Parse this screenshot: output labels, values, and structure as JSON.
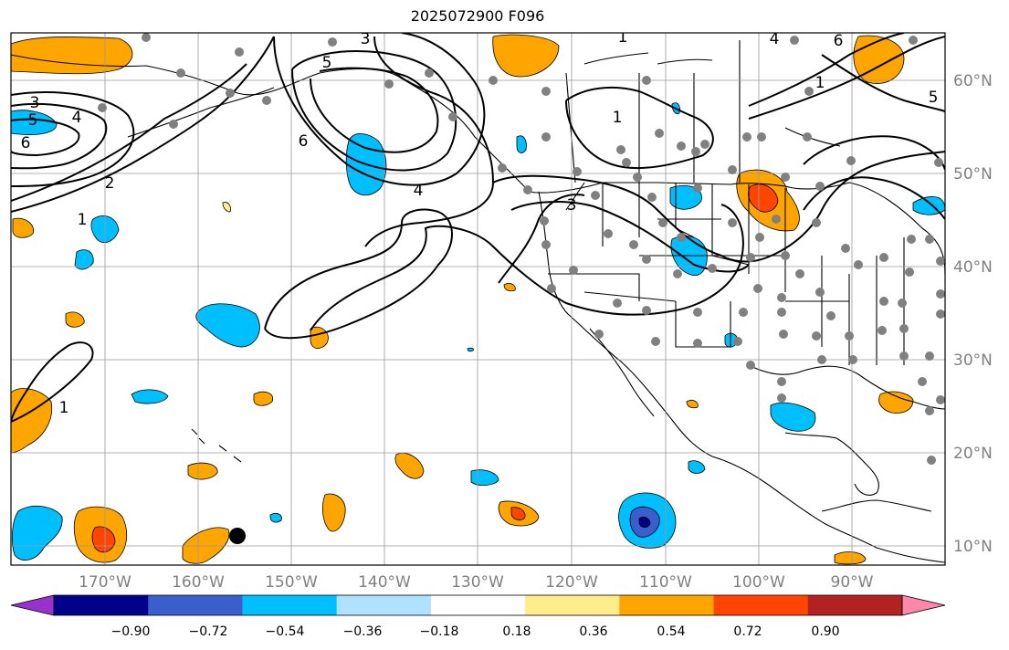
{
  "title": "2025072900 F096",
  "map": {
    "lon_ticks": [
      "170°W",
      "160°W",
      "150°W",
      "140°W",
      "130°W",
      "120°W",
      "110°W",
      "100°W",
      "90°W"
    ],
    "lat_ticks": [
      "60°N",
      "50°N",
      "40°N",
      "30°N",
      "20°N",
      "10°N"
    ],
    "contour_labels": [
      "3",
      "5",
      "4",
      "6",
      "2",
      "1",
      "3",
      "5",
      "6",
      "4",
      "3",
      "1",
      "1",
      "4",
      "6",
      "1",
      "5",
      "1"
    ]
  },
  "colorbar": {
    "labels": [
      "−0.90",
      "−0.72",
      "−0.54",
      "−0.36",
      "−0.18",
      "0.18",
      "0.36",
      "0.54",
      "0.72",
      "0.90"
    ],
    "colors": [
      "#9932cc",
      "#00008b",
      "#3a5fcd",
      "#00bfff",
      "#b0e2ff",
      "#ffffff",
      "#ffec8b",
      "#ffa500",
      "#ff4500",
      "#b22222",
      "#ff88aa"
    ]
  }
}
